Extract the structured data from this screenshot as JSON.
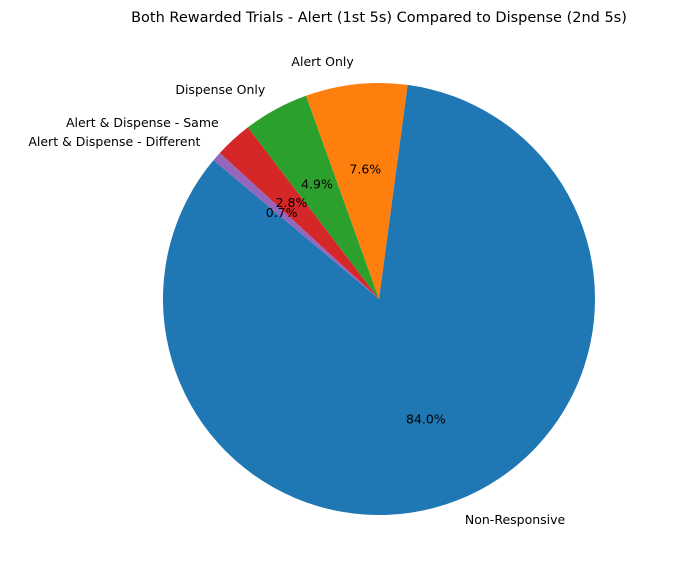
{
  "chart_data": {
    "type": "pie",
    "title": "Both Rewarded Trials - Alert (1st 5s) Compared to Dispense (2nd 5s)",
    "start_angle_deg": 140,
    "direction": "counterclockwise",
    "slices": [
      {
        "label": "Non-Responsive",
        "value": 84.0,
        "pct_label": "84.0%",
        "color": "#1f77b4"
      },
      {
        "label": "Alert Only",
        "value": 7.6,
        "pct_label": "7.6%",
        "color": "#ff7f0e"
      },
      {
        "label": "Dispense Only",
        "value": 4.9,
        "pct_label": "4.9%",
        "color": "#2ca02c"
      },
      {
        "label": "Alert & Dispense - Same",
        "value": 2.8,
        "pct_label": "2.8%",
        "color": "#d62728"
      },
      {
        "label": "Alert & Dispense - Different",
        "value": 0.7,
        "pct_label": "0.7%",
        "color": "#9467bd"
      }
    ]
  }
}
